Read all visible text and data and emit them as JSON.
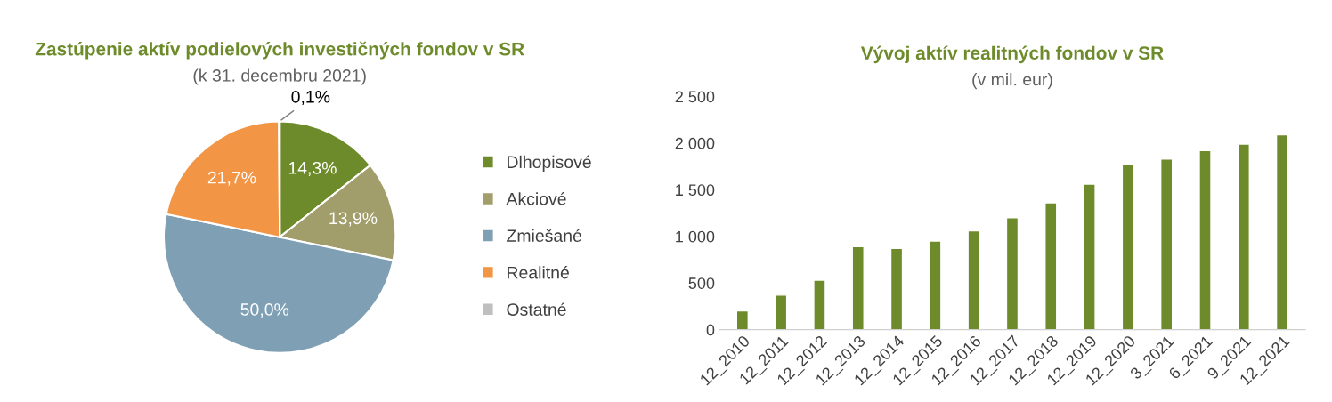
{
  "chart_data": [
    {
      "type": "pie",
      "title": "Zastúpenie aktív podielových investičných fondov v SR",
      "subtitle": "(k 31. decembru 2021)",
      "categories": [
        "Dlhopisové",
        "Akciové",
        "Zmiešané",
        "Realitné",
        "Ostatné"
      ],
      "values": [
        14.3,
        13.9,
        50.0,
        21.7,
        0.1
      ],
      "colors": [
        "#6e8b2b",
        "#a29e6b",
        "#7f9fb5",
        "#f29545",
        "#bfbfbf"
      ],
      "value_labels": [
        "14,3%",
        "13,9%",
        "50,0%",
        "21,7%",
        "0,1%"
      ],
      "legend": "right"
    },
    {
      "type": "bar",
      "title": "Vývoj aktív realitných fondov v SR",
      "subtitle": "(v mil. eur)",
      "categories": [
        "12_2010",
        "12_2011",
        "12_2012",
        "12_2013",
        "12_2014",
        "12_2015",
        "12_2016",
        "12_2017",
        "12_2018",
        "12_2019",
        "12_2020",
        "3_2021",
        "6_2021",
        "9_2021",
        "12_2021"
      ],
      "series": [
        {
          "color": "#6e8b2b",
          "values": [
            200,
            370,
            530,
            890,
            870,
            950,
            1060,
            1200,
            1360,
            1560,
            1770,
            1830,
            1920,
            1990,
            2090
          ]
        }
      ],
      "ylim": [
        0,
        2500
      ],
      "yticks": [
        0,
        500,
        {
          "value": 1000,
          "label": "1 000"
        },
        {
          "value": 1500,
          "label": "1 500"
        },
        {
          "value": 2000,
          "label": "2 000"
        },
        {
          "value": 2500,
          "label": "2 500"
        }
      ],
      "grid": false,
      "legend": false
    }
  ]
}
